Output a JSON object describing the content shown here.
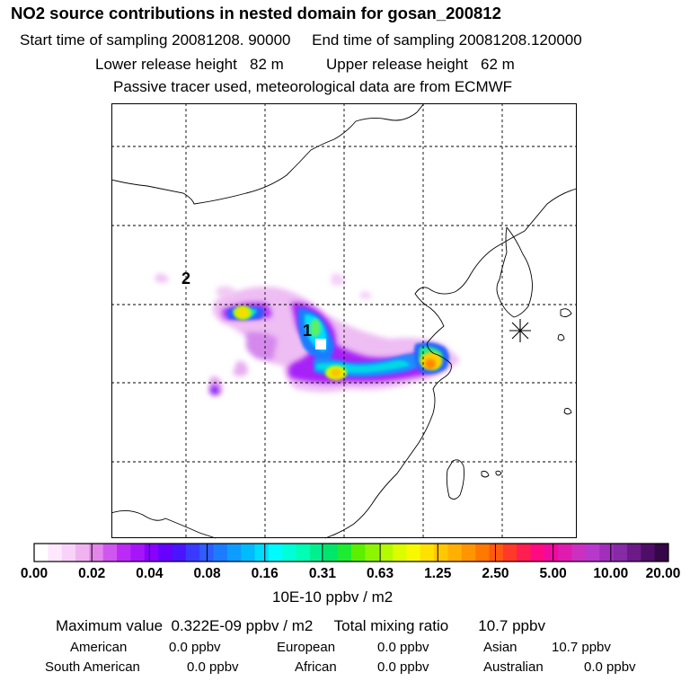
{
  "title": "NO2 source contributions in nested domain for gosan_200812",
  "header": {
    "start_label": "Start time of sampling",
    "start_value": "20081208. 90000",
    "end_label": "End time of sampling",
    "end_value": "20081208.120000",
    "lower_label": "Lower release height",
    "lower_value": "82 m",
    "upper_label": "Upper release height",
    "upper_value": "62 m",
    "note": "Passive tracer used, meteorological data are from ECMWF"
  },
  "map": {
    "labels": {
      "source_1": "1",
      "source_2": "2"
    },
    "receptor_marker": "asterisk-icon"
  },
  "colorbar": {
    "ticks": [
      "0.00",
      "0.02",
      "0.04",
      "0.08",
      "0.16",
      "0.31",
      "0.63",
      "1.25",
      "2.50",
      "5.00",
      "10.00",
      "20.00"
    ],
    "colors": [
      "#ffffff",
      "#fde8fd",
      "#f8d2f8",
      "#f0b3f0",
      "#e386ea",
      "#cf57ef",
      "#bb2bf5",
      "#a614fa",
      "#8a00ff",
      "#6600ff",
      "#4a14ff",
      "#3a3aff",
      "#2d5cff",
      "#1c7cff",
      "#0f9cff",
      "#00bcff",
      "#00dcff",
      "#00fcff",
      "#00ffd8",
      "#00ffb4",
      "#00f090",
      "#00e66a",
      "#1eec32",
      "#5af000",
      "#8cf500",
      "#b4fa00",
      "#dcfc00",
      "#f8f800",
      "#fde100",
      "#ffc800",
      "#ffb000",
      "#ff9500",
      "#ff7800",
      "#ff5a10",
      "#ff3a28",
      "#ff1e50",
      "#ff0a82",
      "#f00aa0",
      "#e01cb0",
      "#cc30c0",
      "#b838cc",
      "#a030bc",
      "#862aa6",
      "#6c1a88",
      "#4e0e66",
      "#350648"
    ],
    "unit": "10E-10 ppbv / m2"
  },
  "summary": {
    "max_label": "Maximum value",
    "max_value": "0.322E-09 ppbv / m2",
    "total_label": "Total mixing ratio",
    "total_value": "10.7 ppbv",
    "regions": [
      {
        "name": "American",
        "value": "0.0 ppbv"
      },
      {
        "name": "European",
        "value": "0.0 ppbv"
      },
      {
        "name": "Asian",
        "value": "10.7 ppbv"
      },
      {
        "name": "South American",
        "value": "0.0 ppbv"
      },
      {
        "name": "African",
        "value": "0.0 ppbv"
      },
      {
        "name": "Australian",
        "value": "0.0 ppbv"
      }
    ]
  }
}
